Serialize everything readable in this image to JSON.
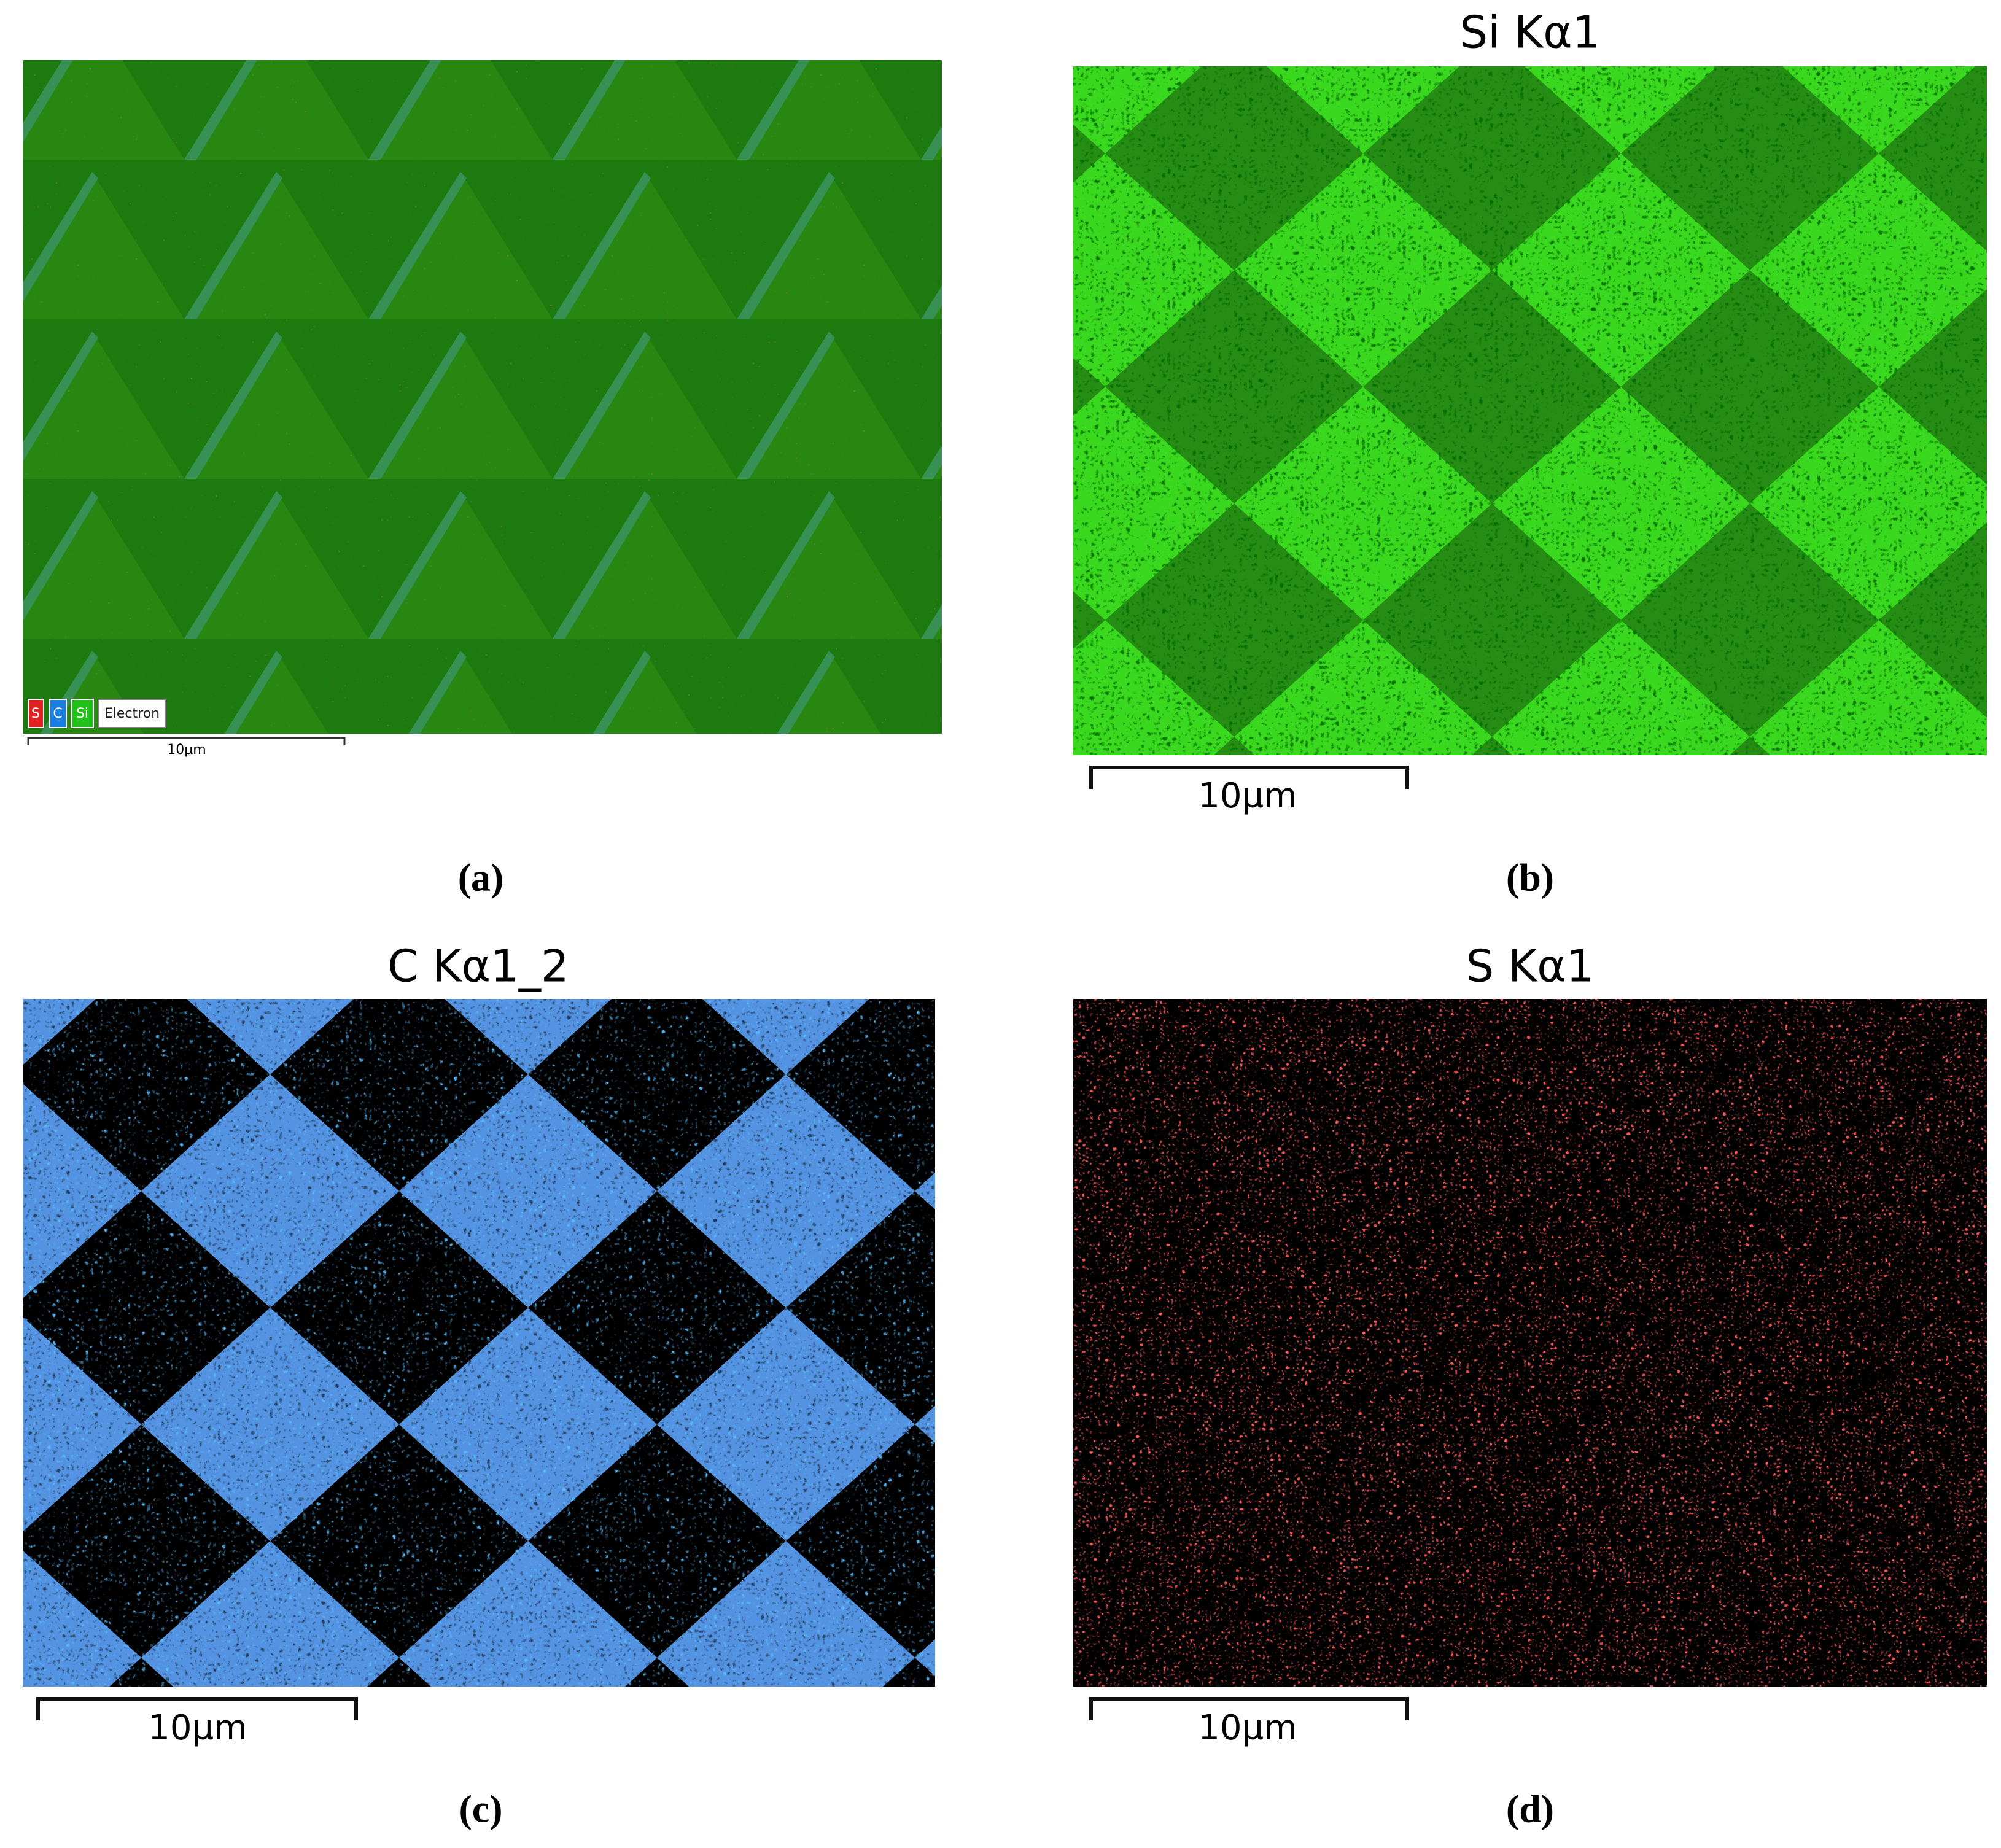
{
  "panels": [
    {
      "caption": "(a)",
      "legend": [
        "S",
        "C",
        "Si",
        "Electron"
      ],
      "scale_bar": "10µm"
    },
    {
      "title": "Si Kα1",
      "scale_bar": "10µm",
      "caption": "(b)"
    },
    {
      "title": "C Kα1_2",
      "scale_bar": "10µm",
      "caption": "(c)"
    },
    {
      "title": "S Kα1",
      "scale_bar": "10µm",
      "caption": "(d)"
    }
  ]
}
